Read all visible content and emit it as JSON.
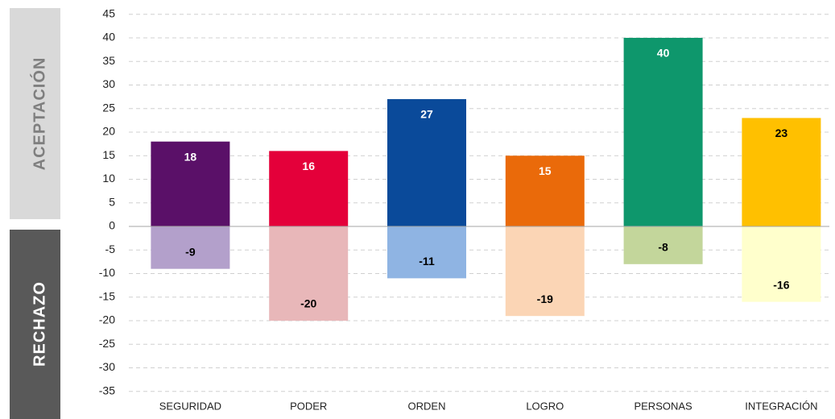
{
  "chart_data": {
    "type": "bar",
    "categories": [
      "SEGURIDAD",
      "PODER",
      "ORDEN",
      "LOGRO",
      "PERSONAS",
      "INTEGRACIÓN"
    ],
    "series": [
      {
        "name": "ACEPTACIÓN",
        "colors": [
          "#5a1068",
          "#e4003a",
          "#0a4a9a",
          "#ea6a0a",
          "#0e976c",
          "#ffc000"
        ],
        "label_colors": [
          "#ffffff",
          "#ffffff",
          "#ffffff",
          "#ffffff",
          "#ffffff",
          "#000000"
        ],
        "values": [
          18,
          16,
          27,
          15,
          40,
          23
        ]
      },
      {
        "name": "RECHAZO",
        "colors": [
          "#b3a0cb",
          "#e8b7b9",
          "#8fb4e3",
          "#fbd5b5",
          "#c3d69b",
          "#ffffcc"
        ],
        "label_colors": [
          "#000000",
          "#000000",
          "#000000",
          "#000000",
          "#000000",
          "#000000"
        ],
        "values": [
          -9,
          -20,
          -11,
          -19,
          -8,
          -16
        ]
      }
    ],
    "ylim": [
      -35,
      45
    ],
    "yticks": [
      -35,
      -30,
      -25,
      -20,
      -15,
      -10,
      -5,
      0,
      5,
      10,
      15,
      20,
      25,
      30,
      35,
      40,
      45
    ],
    "grid": true
  }
}
